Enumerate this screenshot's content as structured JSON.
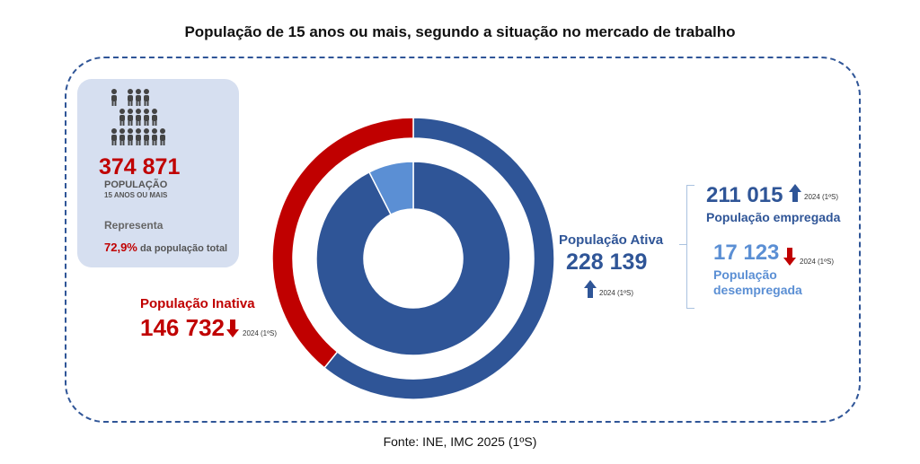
{
  "title": "População de 15 anos ou mais, segundo a situação no mercado de trabalho",
  "summary": {
    "total": "374 871",
    "label_line1": "POPULAÇÃO",
    "label_line2": "15 ANOS OU MAIS",
    "represents": "Representa",
    "pct": "72,9%",
    "pct_suffix": "da população total"
  },
  "inativa": {
    "label": "População Inativa",
    "value": "146 732",
    "note": "2024 (1ºS)",
    "trend": "down"
  },
  "ativa": {
    "label": "População Ativa",
    "value": "228 139",
    "note": "2024 (1ºS)",
    "trend": "up"
  },
  "empregada": {
    "value": "211 015",
    "label": "População empregada",
    "note": "2024 (1ºS)",
    "trend": "up"
  },
  "desempregada": {
    "value": "17 123",
    "label": "População desempregada",
    "label_line1": "População",
    "label_line2": "desempregada",
    "note": "2024 (1ºS)",
    "trend": "down"
  },
  "source": "Fonte: INE, IMC 2025 (1ºS)",
  "colors": {
    "blue": "#2f5597",
    "light_blue": "#5b8fd4",
    "red": "#c00000"
  },
  "chart_data": {
    "type": "pie",
    "title": "População de 15 anos ou mais, segundo a situação no mercado de trabalho",
    "rings": [
      {
        "name": "outer",
        "slices": [
          {
            "label": "População Ativa",
            "value": 228139,
            "color": "#2f5597"
          },
          {
            "label": "População Inativa",
            "value": 146732,
            "color": "#c00000"
          }
        ]
      },
      {
        "name": "inner",
        "slices": [
          {
            "label": "População empregada",
            "value": 211015,
            "color": "#2f5597"
          },
          {
            "label": "População desempregada",
            "value": 17123,
            "color": "#5b8fd4"
          }
        ]
      }
    ]
  }
}
